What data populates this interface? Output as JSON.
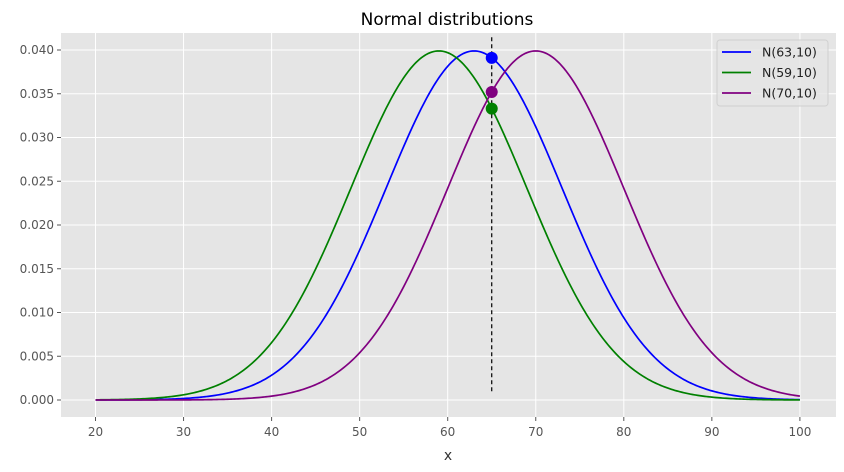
{
  "chart_data": {
    "type": "line",
    "title": "Normal distributions",
    "xlabel": "x",
    "ylabel": "",
    "xlim": [
      16,
      104
    ],
    "ylim": [
      -0.002,
      0.042
    ],
    "grid": true,
    "legend_position": "top-right",
    "x_range": [
      20,
      100
    ],
    "xticks": [
      "20",
      "30",
      "40",
      "50",
      "60",
      "70",
      "80",
      "90",
      "100"
    ],
    "yticks": [
      "0.000",
      "0.005",
      "0.010",
      "0.015",
      "0.020",
      "0.025",
      "0.030",
      "0.035",
      "0.040"
    ],
    "series": [
      {
        "name": "N(63,10)",
        "mean": 63,
        "sd": 10,
        "color": "#0000ff"
      },
      {
        "name": "N(59,10)",
        "mean": 59,
        "sd": 10,
        "color": "#008000"
      },
      {
        "name": "N(70,10)",
        "mean": 70,
        "sd": 10,
        "color": "#800080"
      }
    ],
    "vline": {
      "x": 65,
      "ymin": 0.001,
      "ymax": 0.0418,
      "style": "dashed",
      "color": "#000000"
    },
    "points": [
      {
        "x": 65,
        "y": 0.0391,
        "color": "#0000ff"
      },
      {
        "x": 65,
        "y": 0.0352,
        "color": "#800080"
      },
      {
        "x": 65,
        "y": 0.0333,
        "color": "#008000"
      }
    ]
  }
}
